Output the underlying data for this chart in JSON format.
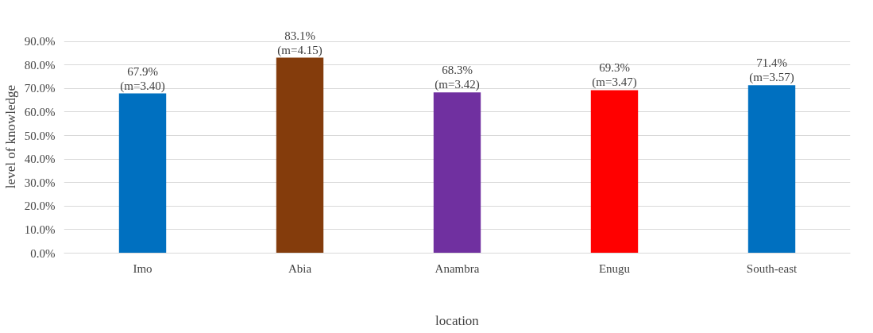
{
  "chart_data": {
    "type": "bar",
    "xlabel": "location",
    "ylabel": "level of knowledge",
    "categories": [
      "Imo",
      "Abia",
      "Anambra",
      "Enugu",
      "South-east"
    ],
    "values": [
      67.9,
      83.1,
      68.3,
      69.3,
      71.4
    ],
    "colors": [
      "#0070c0",
      "#843c0c",
      "#7030a0",
      "#ff0000",
      "#0070c0"
    ],
    "value_labels": [
      "67.9%\n(m=3.40)",
      "83.1%\n(m=4.15)",
      "68.3%\n(m=3.42)",
      "69.3%\n(m=3.47)",
      "71.4%\n(m=3.57)"
    ],
    "ylim": [
      0,
      90
    ],
    "yticks": [
      {
        "value": 0,
        "label": "0.0%"
      },
      {
        "value": 10,
        "label": "10.0%"
      },
      {
        "value": 20,
        "label": "20.0%"
      },
      {
        "value": 30,
        "label": "30.0%"
      },
      {
        "value": 40,
        "label": "40.0%"
      },
      {
        "value": 50,
        "label": "50.0%"
      },
      {
        "value": 60,
        "label": "60.0%"
      },
      {
        "value": 70,
        "label": "70.0%"
      },
      {
        "value": 80,
        "label": "80.0%"
      },
      {
        "value": 90,
        "label": "90.0%"
      }
    ],
    "grid": "y"
  }
}
